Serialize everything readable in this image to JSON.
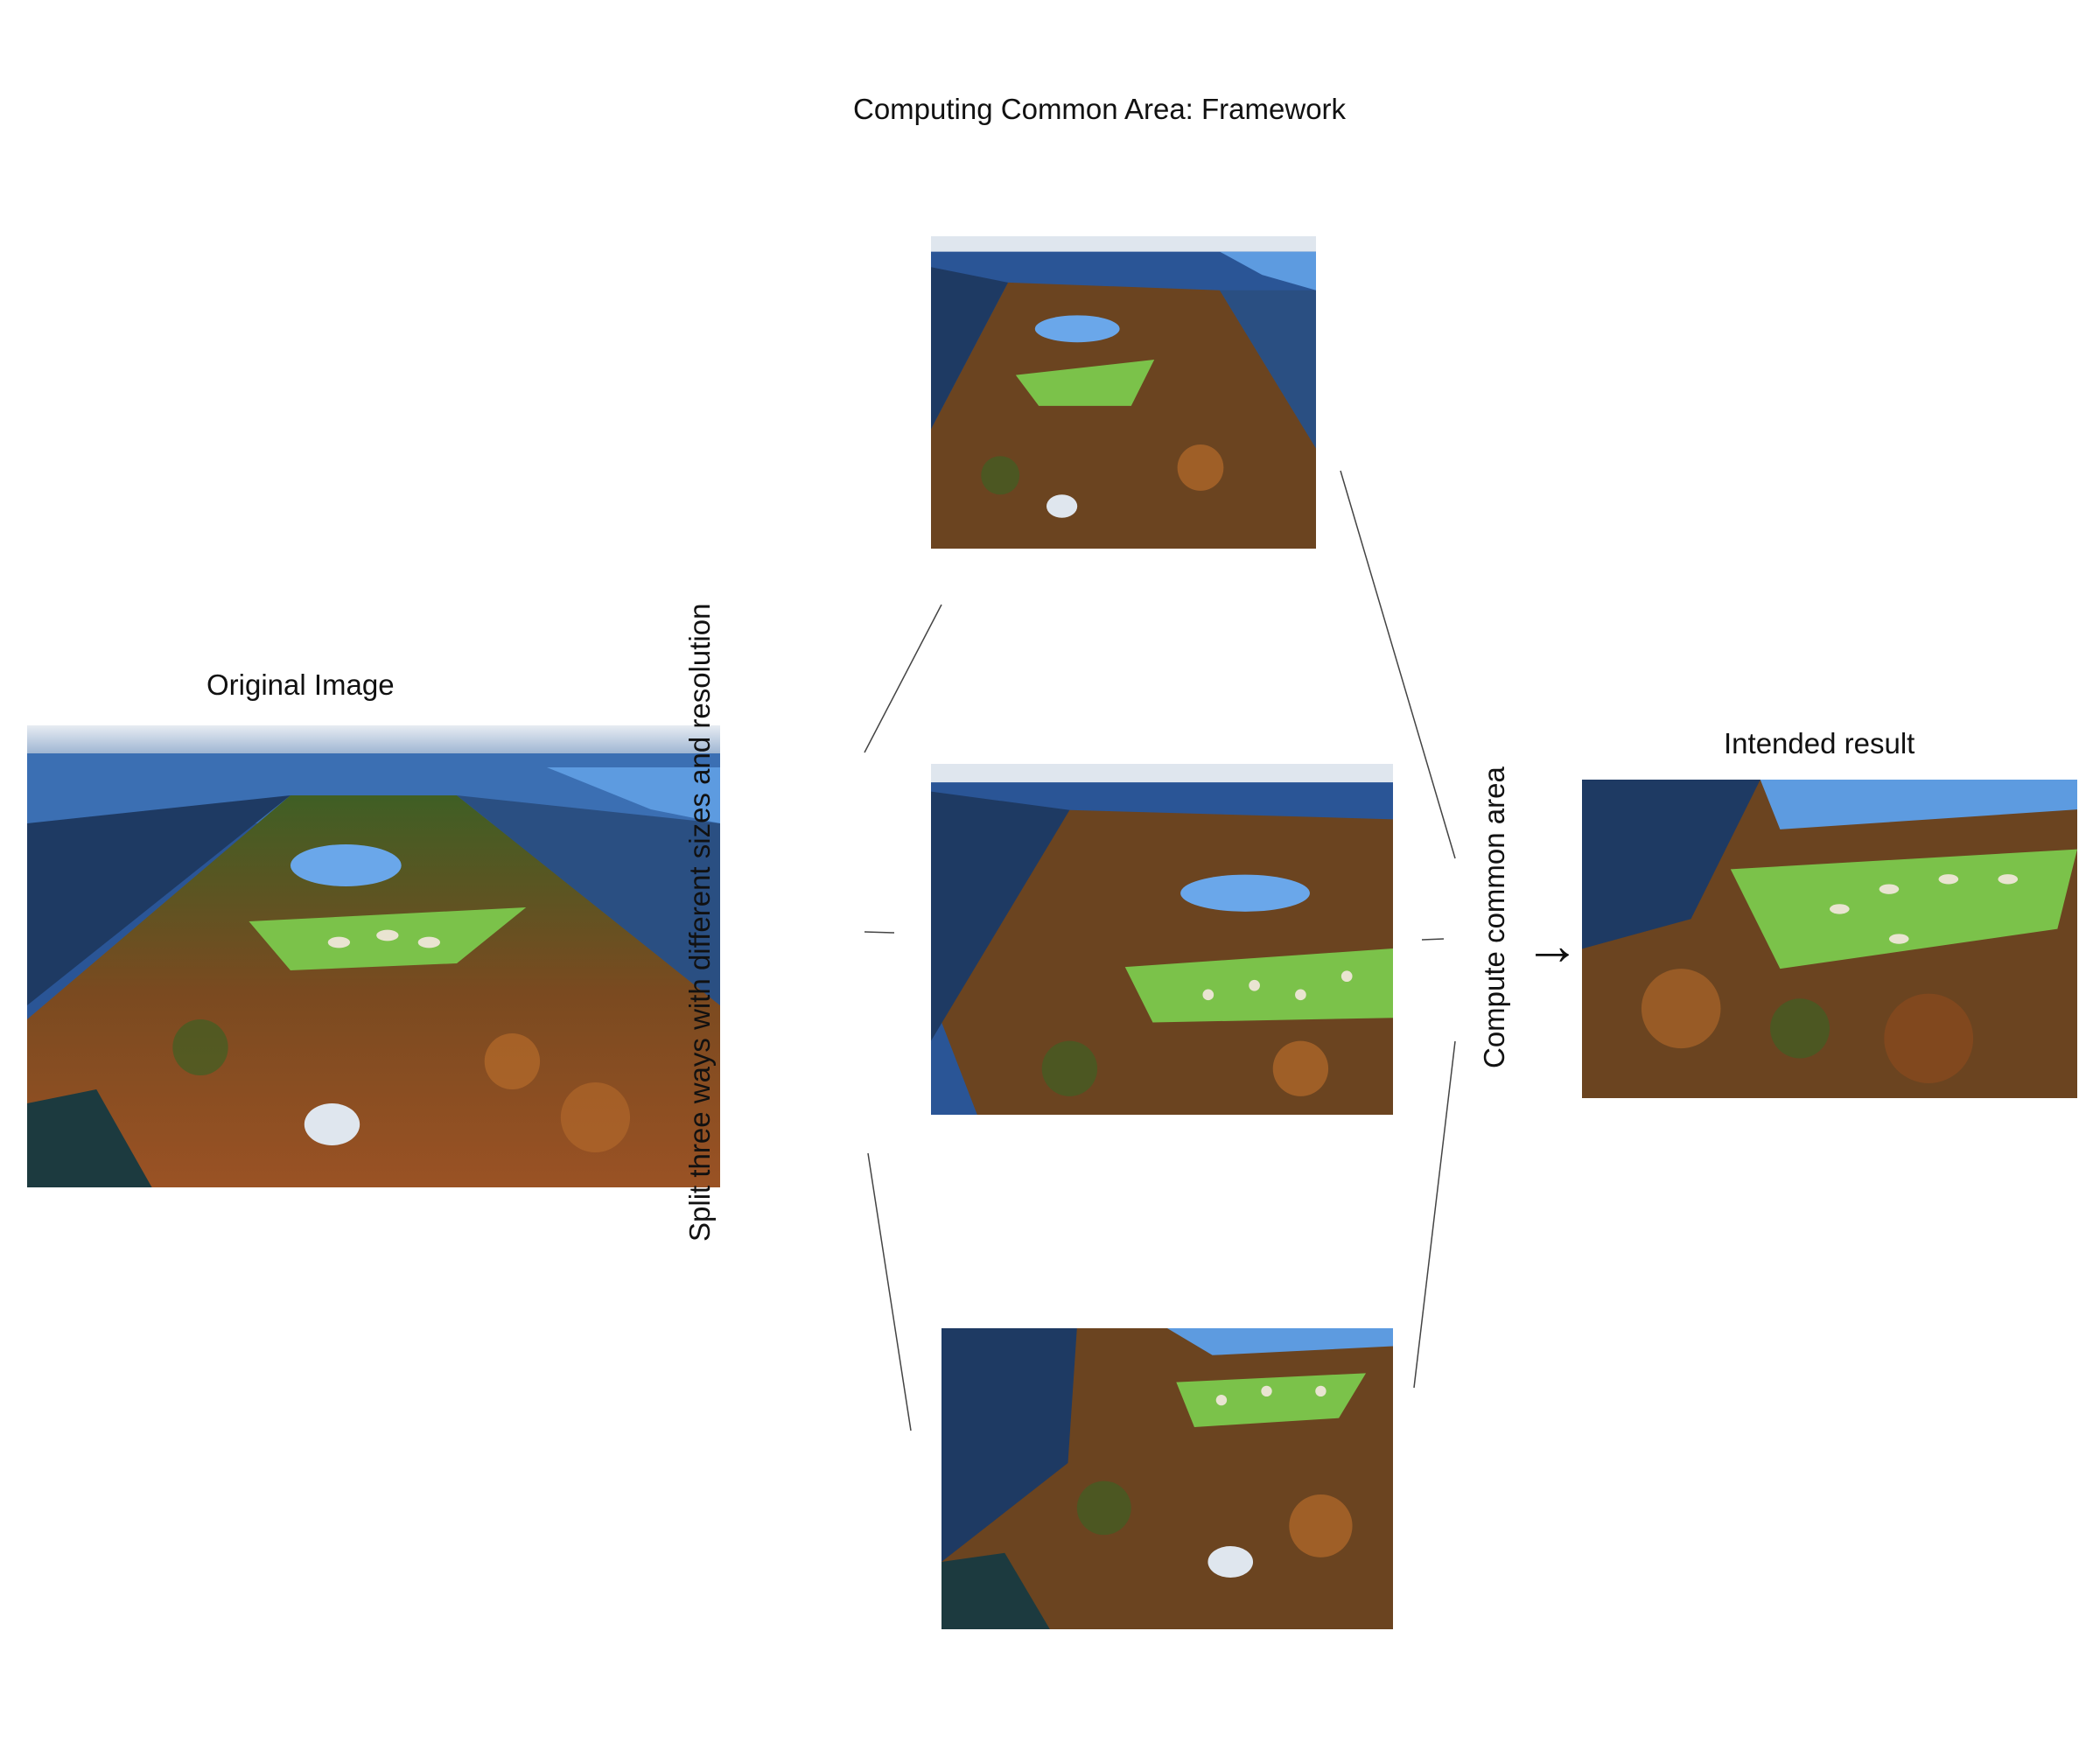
{
  "title": "Computing Common Area: Framework",
  "original": {
    "label": "Original Image"
  },
  "split": {
    "label": "Split three ways with different sizes and resolution"
  },
  "compute": {
    "label": "Compute common area",
    "arrow": "→"
  },
  "result": {
    "label": "Intended result"
  },
  "colors": {
    "sky": "#cfd9e6",
    "city": "#2f5f9e",
    "city_dark": "#1e3a63",
    "water": "#5d9be0",
    "lawn": "#7bc24a",
    "trees": "#8a4a1e",
    "trees_light": "#b56b2b",
    "trees_green": "#3f5f24",
    "line": "#333333"
  }
}
